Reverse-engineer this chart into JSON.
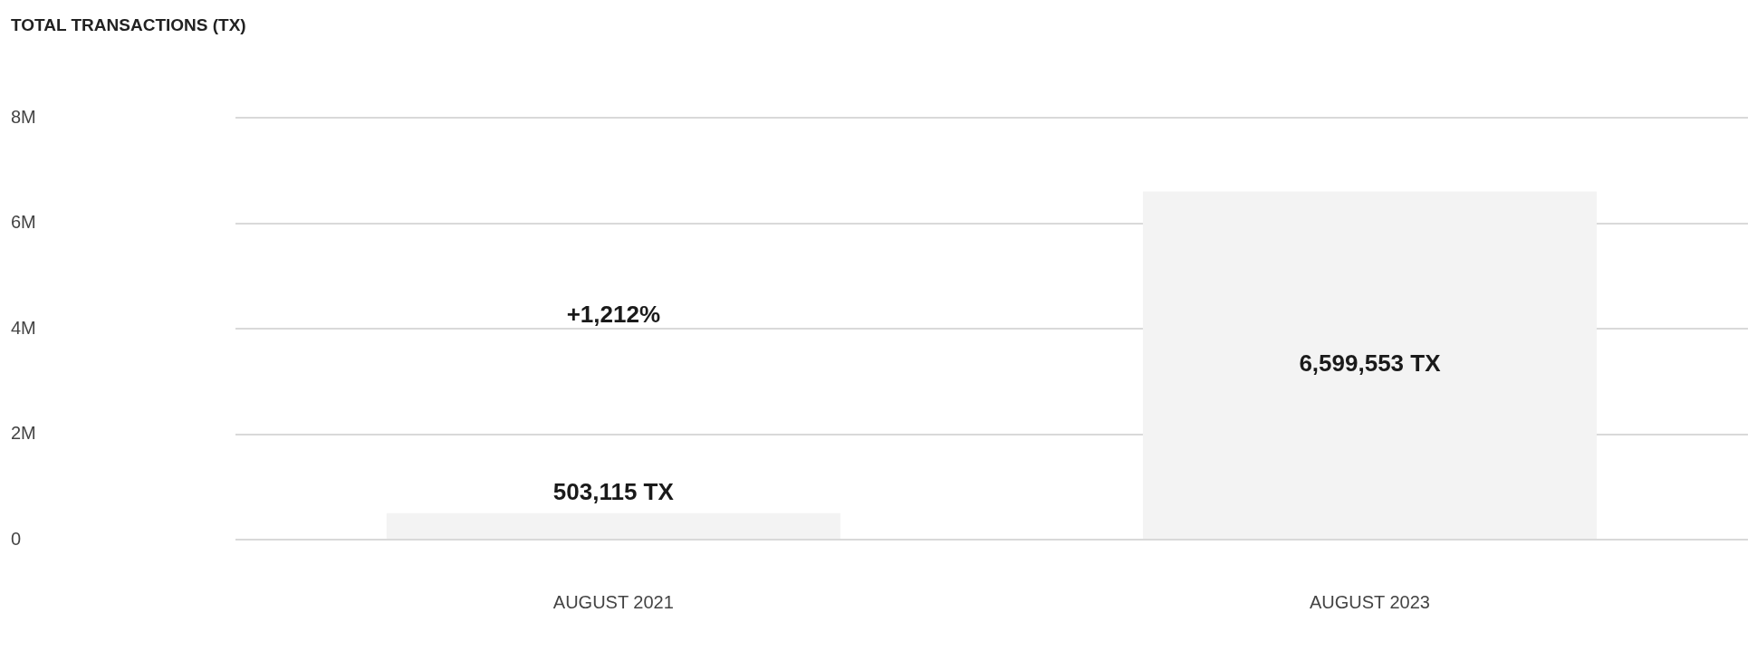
{
  "chart_data": {
    "type": "bar",
    "title": "TOTAL TRANSACTIONS (TX)",
    "categories": [
      "AUGUST 2021",
      "AUGUST 2023"
    ],
    "values": [
      503115,
      6599553
    ],
    "color": "#f3f3f3",
    "value_labels": [
      "503,115 TX",
      "6,599,553 TX"
    ],
    "annotations": [
      "+1,212%"
    ],
    "ylim": [
      0,
      8000000
    ],
    "yticks": [
      0,
      {
        "value": 2000000,
        "label": "2M"
      },
      {
        "value": 4000000,
        "label": "4M"
      },
      {
        "value": 6000000,
        "label": "6M"
      },
      {
        "value": 8000000,
        "label": "8M"
      }
    ],
    "grid": "y",
    "legend": false
  }
}
